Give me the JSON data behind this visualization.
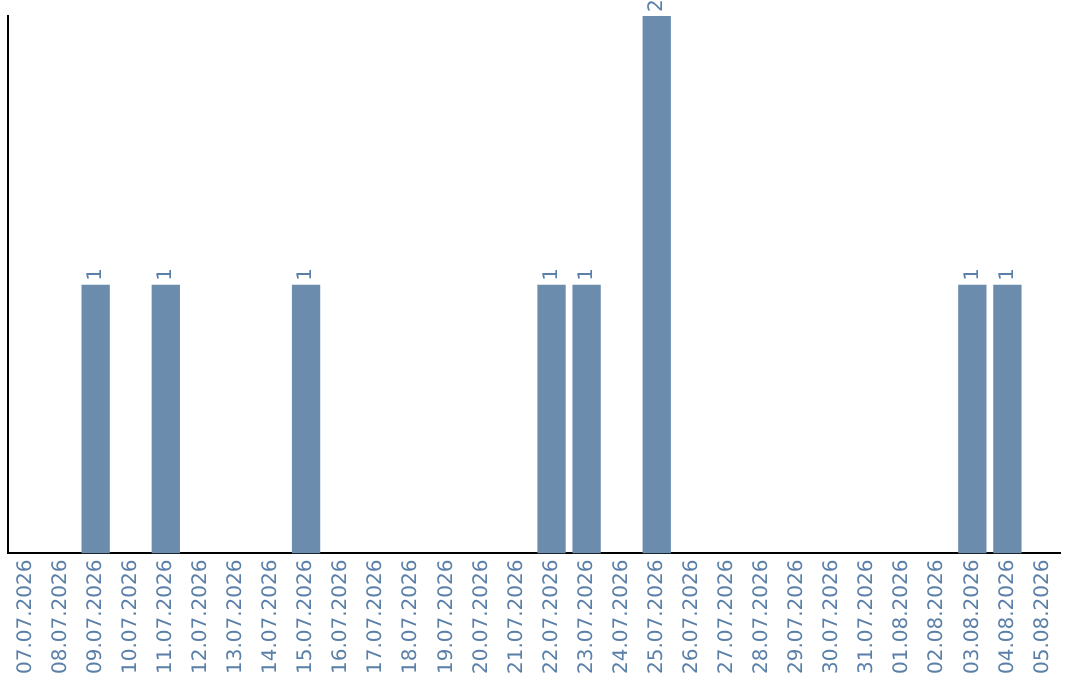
{
  "chart_data": {
    "type": "bar",
    "categories": [
      "07.07.2026",
      "08.07.2026",
      "09.07.2026",
      "10.07.2026",
      "11.07.2026",
      "12.07.2026",
      "13.07.2026",
      "14.07.2026",
      "15.07.2026",
      "16.07.2026",
      "17.07.2026",
      "18.07.2026",
      "19.07.2026",
      "20.07.2026",
      "21.07.2026",
      "22.07.2026",
      "23.07.2026",
      "24.07.2026",
      "25.07.2026",
      "26.07.2026",
      "27.07.2026",
      "28.07.2026",
      "29.07.2026",
      "30.07.2026",
      "31.07.2026",
      "01.08.2026",
      "02.08.2026",
      "03.08.2026",
      "04.08.2026",
      "05.08.2026"
    ],
    "values": [
      0,
      0,
      1,
      0,
      1,
      0,
      0,
      0,
      1,
      0,
      0,
      0,
      0,
      0,
      0,
      1,
      1,
      0,
      2,
      0,
      0,
      0,
      0,
      0,
      0,
      0,
      0,
      1,
      1,
      0
    ],
    "value_labels": [
      null,
      null,
      "1",
      null,
      "1",
      null,
      null,
      null,
      "1",
      null,
      null,
      null,
      null,
      null,
      null,
      "1",
      "1",
      null,
      "2",
      null,
      null,
      null,
      null,
      null,
      null,
      null,
      null,
      "1",
      "1",
      null
    ],
    "color": "#6b8cad",
    "tick_labels": "x",
    "grid": false,
    "legend": false
  }
}
